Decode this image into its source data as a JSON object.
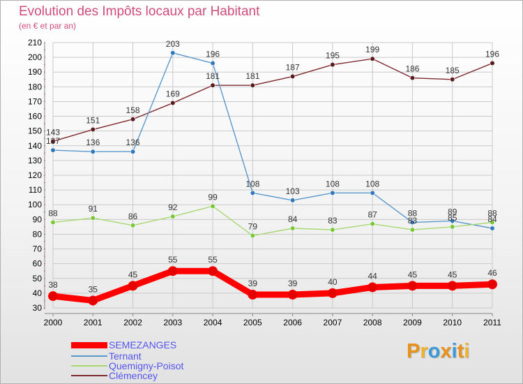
{
  "header": {
    "title": "Evolution des Impôts locaux par Habitant",
    "subtitle": "(en € et par an)"
  },
  "chart_data": {
    "type": "line",
    "title": "Evolution des Impôts locaux par Habitant",
    "subtitle": "(en € et par an)",
    "xlabel": "",
    "ylabel": "",
    "x": [
      "2000",
      "2001",
      "2002",
      "2003",
      "2004",
      "2005",
      "2006",
      "2007",
      "2008",
      "2009",
      "2010",
      "2011"
    ],
    "ylim": [
      30,
      210
    ],
    "yticks": [
      30,
      40,
      50,
      60,
      70,
      80,
      90,
      100,
      110,
      120,
      130,
      140,
      150,
      160,
      170,
      180,
      190,
      200,
      210
    ],
    "grid": true,
    "legend_position": "bottom-left",
    "series": [
      {
        "name": "Clémencey",
        "color": "#7d2a2e",
        "marker": "#5a1a1e",
        "values": [
          143,
          151,
          158,
          169,
          181,
          181,
          187,
          195,
          199,
          186,
          185,
          196
        ]
      },
      {
        "name": "Ternant",
        "color": "#5a98cc",
        "marker": "#2f78bd",
        "values": [
          137,
          136,
          136,
          203,
          196,
          108,
          103,
          108,
          108,
          88,
          89,
          84
        ]
      },
      {
        "name": "Quemigny-Poisot",
        "color": "#a8d870",
        "marker": "#78c83a",
        "values": [
          88,
          91,
          86,
          92,
          99,
          79,
          84,
          83,
          87,
          83,
          85,
          88
        ]
      },
      {
        "name": "SEMEZANGES",
        "color": "#ff0000",
        "marker": "#e40000",
        "values": [
          38,
          35,
          45,
          55,
          55,
          39,
          39,
          40,
          44,
          45,
          45,
          46
        ]
      }
    ],
    "data_labels": [
      {
        "series": "Clémencey",
        "labels": [
          "143",
          "151",
          "158",
          "169",
          "181",
          "181",
          "187",
          "195",
          "199",
          "186",
          "185",
          "196"
        ]
      },
      {
        "series": "Ternant",
        "labels": [
          "137",
          "136",
          "136",
          "203",
          "196",
          "108",
          "103",
          "108",
          "108",
          "88",
          "89",
          "84"
        ]
      },
      {
        "series": "Quemigny-Poisot",
        "labels": [
          "88",
          "91",
          "86",
          "92",
          "99",
          "79",
          "84",
          "83",
          "87",
          "83",
          "85",
          "88"
        ]
      },
      {
        "series": "SEMEZANGES",
        "labels": [
          "38",
          "35",
          "45",
          "55",
          "55",
          "39",
          "39",
          "40",
          "44",
          "45",
          "45",
          "46"
        ]
      }
    ]
  },
  "legend": {
    "items": [
      {
        "label": "SEMEZANGES",
        "color": "#ff0000",
        "text_color": "#5555ee"
      },
      {
        "label": "Ternant",
        "color": "#5a98cc",
        "text_color": "#5555ee"
      },
      {
        "label": "Quemigny-Poisot",
        "color": "#a8d870",
        "text_color": "#5555ee"
      },
      {
        "label": "Clémencey",
        "color": "#7d2a2e",
        "text_color": "#5555ee"
      }
    ]
  },
  "logo": {
    "text": "Proxiti",
    "colors": [
      "#e8921c",
      "#f0b42a",
      "#3b9ad8",
      "#e8921c",
      "#3b9ad8",
      "#e8921c",
      "#f0b42a"
    ]
  },
  "style": {
    "title_color": "#d04c7a",
    "grid_color": "#c9c9c9",
    "axis_text_color": "#000000"
  }
}
